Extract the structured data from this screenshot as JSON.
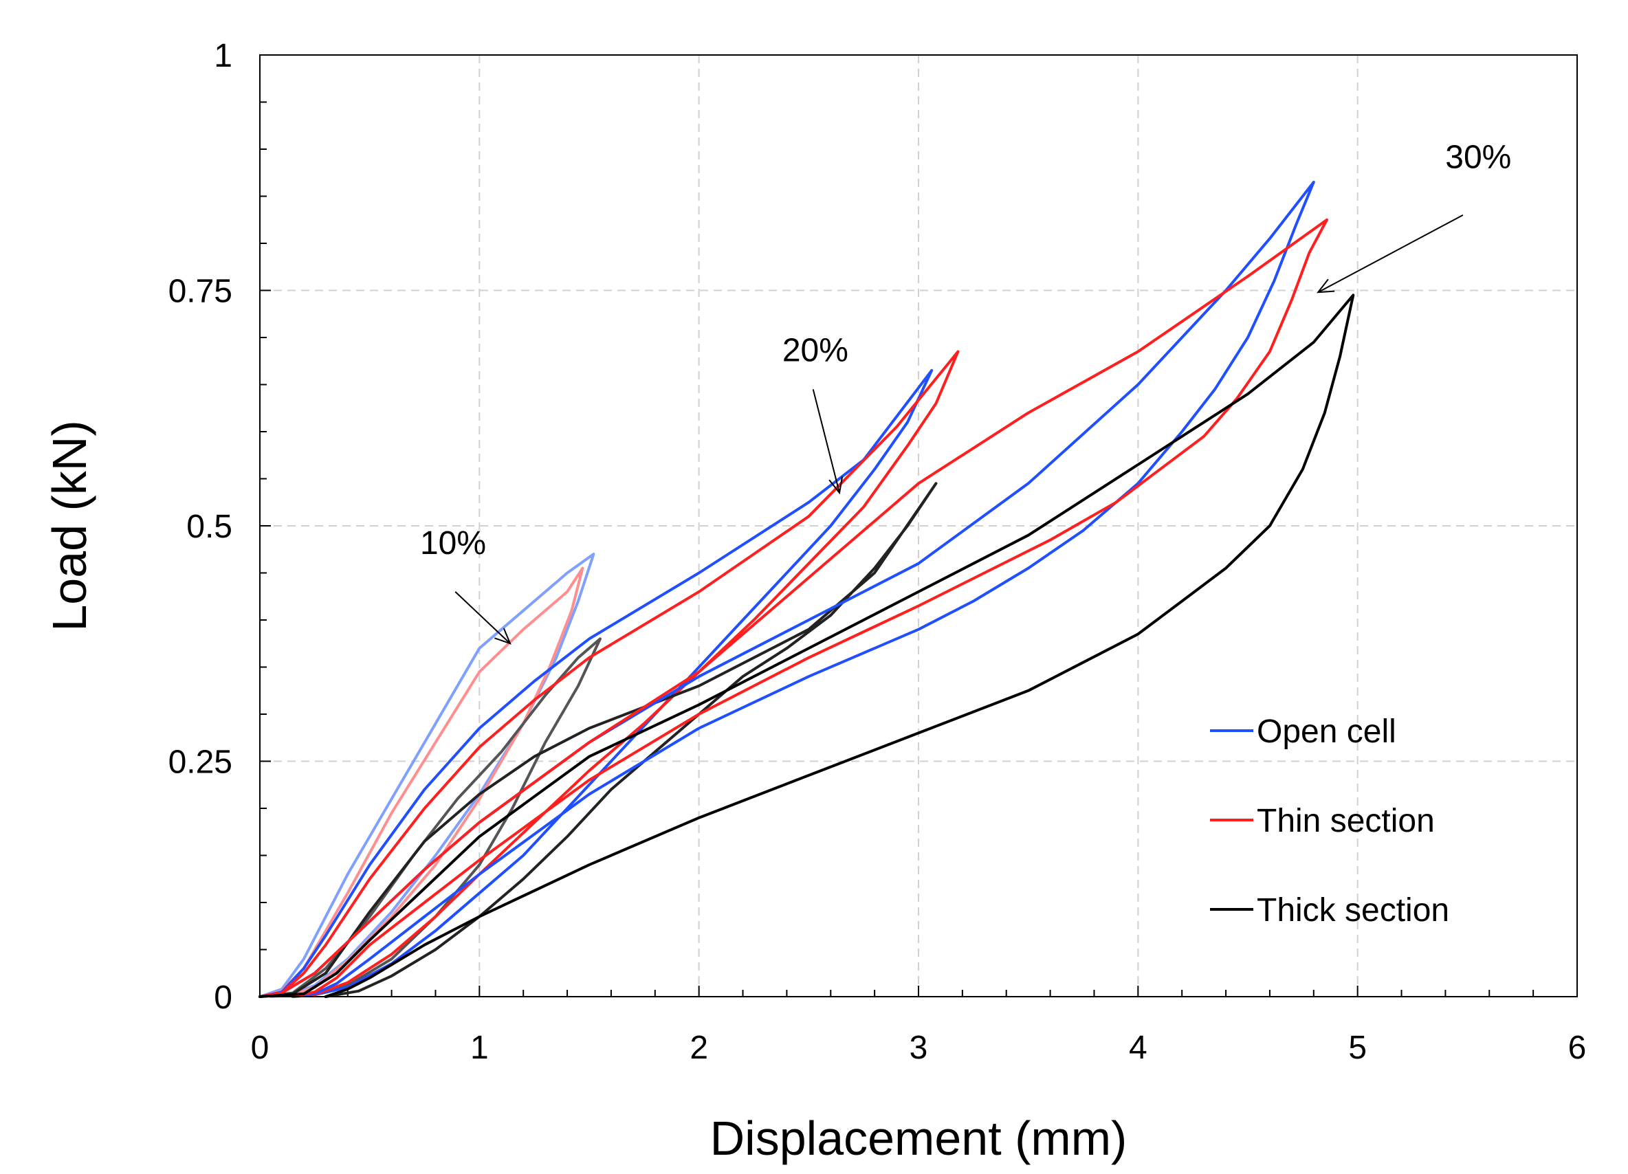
{
  "chart_data": {
    "type": "line",
    "title": "",
    "xlabel": "Displacement (mm)",
    "ylabel": "Load (kN)",
    "xlim": [
      0,
      6
    ],
    "ylim": [
      0,
      1
    ],
    "xticks": [
      0,
      1,
      2,
      3,
      4,
      5,
      6
    ],
    "xtick_labels": [
      "0",
      "1",
      "2",
      "3",
      "4",
      "5",
      "6"
    ],
    "yticks": [
      0,
      0.25,
      0.5,
      0.75,
      1
    ],
    "ytick_labels": [
      "0",
      "0.25",
      "0.5",
      "0.75",
      "1"
    ],
    "grid": true,
    "legend_position": "bottom-right",
    "colors": {
      "open_cell": "#1f4fff",
      "thin_section": "#ff1f1f",
      "thick_section": "#000000",
      "open_cell_10": "#7fa0ff",
      "thin_section_10": "#ff8f8f",
      "thick_section_10": "#555555"
    },
    "legend": [
      {
        "name": "Open cell",
        "color": "#1f4fff"
      },
      {
        "name": "Thin section",
        "color": "#ff1f1f"
      },
      {
        "name": "Thick section",
        "color": "#000000"
      }
    ],
    "annotations": [
      {
        "text": "10%",
        "label_at": [
          0.88,
          0.47
        ],
        "arrow_from": [
          0.89,
          0.43
        ],
        "arrow_to": [
          1.14,
          0.375
        ]
      },
      {
        "text": "20%",
        "label_at": [
          2.53,
          0.675
        ],
        "arrow_from": [
          2.52,
          0.645
        ],
        "arrow_to": [
          2.64,
          0.535
        ]
      },
      {
        "text": "30%",
        "label_at": [
          5.55,
          0.88
        ],
        "arrow_from": [
          5.48,
          0.83
        ],
        "arrow_to": [
          4.82,
          0.748
        ]
      }
    ],
    "series": [
      {
        "name": "Open cell 10%",
        "legend": "Open cell",
        "cycle": "10%",
        "color": "#7fa0ff",
        "loading": [
          [
            0,
            0
          ],
          [
            0.1,
            0.008
          ],
          [
            0.2,
            0.04
          ],
          [
            0.3,
            0.085
          ],
          [
            0.4,
            0.13
          ],
          [
            0.6,
            0.21
          ],
          [
            0.8,
            0.29
          ],
          [
            1.0,
            0.37
          ],
          [
            1.2,
            0.41
          ],
          [
            1.4,
            0.45
          ],
          [
            1.52,
            0.47
          ]
        ],
        "unloading": [
          [
            1.52,
            0.47
          ],
          [
            1.45,
            0.42
          ],
          [
            1.35,
            0.36
          ],
          [
            1.2,
            0.29
          ],
          [
            1.0,
            0.215
          ],
          [
            0.8,
            0.15
          ],
          [
            0.6,
            0.09
          ],
          [
            0.4,
            0.04
          ],
          [
            0.25,
            0.012
          ],
          [
            0.15,
            0.003
          ],
          [
            0.05,
            0
          ]
        ]
      },
      {
        "name": "Thin section 10%",
        "legend": "Thin section",
        "cycle": "10%",
        "color": "#ff8f8f",
        "loading": [
          [
            0,
            0
          ],
          [
            0.1,
            0.006
          ],
          [
            0.2,
            0.03
          ],
          [
            0.3,
            0.07
          ],
          [
            0.4,
            0.11
          ],
          [
            0.6,
            0.195
          ],
          [
            0.8,
            0.27
          ],
          [
            1.0,
            0.345
          ],
          [
            1.2,
            0.39
          ],
          [
            1.4,
            0.43
          ],
          [
            1.47,
            0.455
          ]
        ],
        "unloading": [
          [
            1.47,
            0.455
          ],
          [
            1.42,
            0.41
          ],
          [
            1.32,
            0.35
          ],
          [
            1.2,
            0.29
          ],
          [
            1.0,
            0.21
          ],
          [
            0.8,
            0.14
          ],
          [
            0.6,
            0.085
          ],
          [
            0.4,
            0.038
          ],
          [
            0.25,
            0.01
          ],
          [
            0.15,
            0.002
          ],
          [
            0.05,
            0
          ]
        ]
      },
      {
        "name": "Thick section 10%",
        "legend": "Thick section",
        "cycle": "10%",
        "color": "#555555",
        "loading": [
          [
            0,
            0
          ],
          [
            0.15,
            0.004
          ],
          [
            0.3,
            0.03
          ],
          [
            0.5,
            0.085
          ],
          [
            0.7,
            0.15
          ],
          [
            0.9,
            0.21
          ],
          [
            1.1,
            0.26
          ],
          [
            1.3,
            0.32
          ],
          [
            1.45,
            0.36
          ],
          [
            1.55,
            0.38
          ]
        ],
        "unloading": [
          [
            1.55,
            0.38
          ],
          [
            1.45,
            0.33
          ],
          [
            1.3,
            0.27
          ],
          [
            1.15,
            0.2
          ],
          [
            1.0,
            0.14
          ],
          [
            0.8,
            0.085
          ],
          [
            0.6,
            0.04
          ],
          [
            0.4,
            0.012
          ],
          [
            0.25,
            0.002
          ],
          [
            0.15,
            0
          ]
        ]
      },
      {
        "name": "Open cell 20%",
        "legend": "Open cell",
        "cycle": "20%",
        "color": "#1f4fff",
        "loading": [
          [
            0,
            0
          ],
          [
            0.1,
            0.005
          ],
          [
            0.2,
            0.03
          ],
          [
            0.3,
            0.065
          ],
          [
            0.5,
            0.14
          ],
          [
            0.75,
            0.22
          ],
          [
            1.0,
            0.285
          ],
          [
            1.25,
            0.335
          ],
          [
            1.5,
            0.38
          ],
          [
            2.0,
            0.45
          ],
          [
            2.5,
            0.525
          ],
          [
            2.75,
            0.57
          ],
          [
            3.06,
            0.665
          ]
        ],
        "unloading": [
          [
            3.06,
            0.665
          ],
          [
            2.95,
            0.61
          ],
          [
            2.8,
            0.56
          ],
          [
            2.6,
            0.5
          ],
          [
            2.4,
            0.45
          ],
          [
            2.2,
            0.4
          ],
          [
            2.0,
            0.35
          ],
          [
            1.8,
            0.3
          ],
          [
            1.6,
            0.25
          ],
          [
            1.4,
            0.2
          ],
          [
            1.2,
            0.15
          ],
          [
            1.0,
            0.11
          ],
          [
            0.8,
            0.07
          ],
          [
            0.6,
            0.035
          ],
          [
            0.4,
            0.01
          ],
          [
            0.25,
            0.002
          ],
          [
            0.15,
            0
          ]
        ]
      },
      {
        "name": "Thin section 20%",
        "legend": "Thin section",
        "cycle": "20%",
        "color": "#ff1f1f",
        "loading": [
          [
            0,
            0
          ],
          [
            0.1,
            0.004
          ],
          [
            0.2,
            0.025
          ],
          [
            0.3,
            0.055
          ],
          [
            0.5,
            0.125
          ],
          [
            0.75,
            0.2
          ],
          [
            1.0,
            0.265
          ],
          [
            1.25,
            0.315
          ],
          [
            1.5,
            0.36
          ],
          [
            2.0,
            0.43
          ],
          [
            2.5,
            0.51
          ],
          [
            2.9,
            0.605
          ],
          [
            3.18,
            0.685
          ]
        ],
        "unloading": [
          [
            3.18,
            0.685
          ],
          [
            3.08,
            0.63
          ],
          [
            2.95,
            0.585
          ],
          [
            2.75,
            0.52
          ],
          [
            2.5,
            0.46
          ],
          [
            2.25,
            0.4
          ],
          [
            2.0,
            0.345
          ],
          [
            1.75,
            0.29
          ],
          [
            1.5,
            0.24
          ],
          [
            1.25,
            0.185
          ],
          [
            1.0,
            0.13
          ],
          [
            0.8,
            0.085
          ],
          [
            0.6,
            0.045
          ],
          [
            0.4,
            0.015
          ],
          [
            0.25,
            0.002
          ],
          [
            0.15,
            0
          ]
        ]
      },
      {
        "name": "Thick section 20%",
        "legend": "Thick section",
        "cycle": "20%",
        "color": "#222222",
        "loading": [
          [
            0,
            0
          ],
          [
            0.15,
            0.003
          ],
          [
            0.3,
            0.025
          ],
          [
            0.5,
            0.09
          ],
          [
            0.75,
            0.165
          ],
          [
            1.0,
            0.215
          ],
          [
            1.25,
            0.255
          ],
          [
            1.5,
            0.285
          ],
          [
            2.0,
            0.33
          ],
          [
            2.5,
            0.39
          ],
          [
            2.8,
            0.45
          ],
          [
            3.08,
            0.545
          ]
        ],
        "unloading": [
          [
            3.08,
            0.545
          ],
          [
            2.95,
            0.5
          ],
          [
            2.8,
            0.455
          ],
          [
            2.6,
            0.405
          ],
          [
            2.4,
            0.37
          ],
          [
            2.2,
            0.34
          ],
          [
            2.0,
            0.3
          ],
          [
            1.8,
            0.26
          ],
          [
            1.6,
            0.22
          ],
          [
            1.4,
            0.17
          ],
          [
            1.2,
            0.125
          ],
          [
            1.0,
            0.085
          ],
          [
            0.8,
            0.05
          ],
          [
            0.6,
            0.022
          ],
          [
            0.45,
            0.006
          ],
          [
            0.3,
            0
          ]
        ]
      },
      {
        "name": "Open cell 30%",
        "legend": "Open cell",
        "cycle": "30%",
        "color": "#1f4fff",
        "loading": [
          [
            0,
            0
          ],
          [
            0.1,
            0.004
          ],
          [
            0.25,
            0.025
          ],
          [
            0.5,
            0.08
          ],
          [
            0.75,
            0.135
          ],
          [
            1.0,
            0.185
          ],
          [
            1.5,
            0.27
          ],
          [
            2.0,
            0.34
          ],
          [
            2.5,
            0.4
          ],
          [
            3.0,
            0.46
          ],
          [
            3.5,
            0.545
          ],
          [
            4.0,
            0.65
          ],
          [
            4.4,
            0.75
          ],
          [
            4.6,
            0.805
          ],
          [
            4.8,
            0.865
          ]
        ],
        "unloading": [
          [
            4.8,
            0.865
          ],
          [
            4.72,
            0.82
          ],
          [
            4.62,
            0.76
          ],
          [
            4.5,
            0.7
          ],
          [
            4.35,
            0.645
          ],
          [
            4.2,
            0.6
          ],
          [
            4.0,
            0.545
          ],
          [
            3.75,
            0.495
          ],
          [
            3.5,
            0.455
          ],
          [
            3.25,
            0.42
          ],
          [
            3.0,
            0.39
          ],
          [
            2.5,
            0.34
          ],
          [
            2.0,
            0.285
          ],
          [
            1.5,
            0.215
          ],
          [
            1.0,
            0.13
          ],
          [
            0.75,
            0.085
          ],
          [
            0.5,
            0.04
          ],
          [
            0.35,
            0.014
          ],
          [
            0.25,
            0.003
          ],
          [
            0.15,
            0
          ]
        ]
      },
      {
        "name": "Thin section 30%",
        "legend": "Thin section",
        "cycle": "30%",
        "color": "#ff1f1f",
        "loading": [
          [
            0,
            0
          ],
          [
            0.1,
            0.004
          ],
          [
            0.25,
            0.025
          ],
          [
            0.5,
            0.08
          ],
          [
            0.75,
            0.135
          ],
          [
            1.0,
            0.185
          ],
          [
            1.5,
            0.27
          ],
          [
            2.0,
            0.345
          ],
          [
            2.5,
            0.445
          ],
          [
            3.0,
            0.545
          ],
          [
            3.5,
            0.62
          ],
          [
            4.0,
            0.685
          ],
          [
            4.5,
            0.765
          ],
          [
            4.86,
            0.825
          ]
        ],
        "unloading": [
          [
            4.86,
            0.825
          ],
          [
            4.78,
            0.79
          ],
          [
            4.7,
            0.74
          ],
          [
            4.6,
            0.685
          ],
          [
            4.45,
            0.635
          ],
          [
            4.3,
            0.595
          ],
          [
            4.1,
            0.56
          ],
          [
            3.9,
            0.525
          ],
          [
            3.6,
            0.485
          ],
          [
            3.3,
            0.45
          ],
          [
            3.0,
            0.415
          ],
          [
            2.5,
            0.36
          ],
          [
            2.0,
            0.3
          ],
          [
            1.5,
            0.23
          ],
          [
            1.0,
            0.145
          ],
          [
            0.75,
            0.1
          ],
          [
            0.5,
            0.055
          ],
          [
            0.35,
            0.02
          ],
          [
            0.25,
            0.005
          ],
          [
            0.15,
            0
          ]
        ]
      },
      {
        "name": "Thick section 30%",
        "legend": "Thick section",
        "cycle": "30%",
        "color": "#000000",
        "loading": [
          [
            0,
            0
          ],
          [
            0.2,
            0.003
          ],
          [
            0.35,
            0.025
          ],
          [
            0.5,
            0.06
          ],
          [
            0.75,
            0.115
          ],
          [
            1.0,
            0.17
          ],
          [
            1.5,
            0.255
          ],
          [
            2.0,
            0.31
          ],
          [
            2.5,
            0.37
          ],
          [
            3.0,
            0.43
          ],
          [
            3.5,
            0.49
          ],
          [
            4.0,
            0.565
          ],
          [
            4.5,
            0.64
          ],
          [
            4.8,
            0.695
          ],
          [
            4.98,
            0.745
          ]
        ],
        "unloading": [
          [
            4.98,
            0.745
          ],
          [
            4.92,
            0.68
          ],
          [
            4.85,
            0.62
          ],
          [
            4.75,
            0.56
          ],
          [
            4.6,
            0.5
          ],
          [
            4.4,
            0.455
          ],
          [
            4.2,
            0.42
          ],
          [
            4.0,
            0.385
          ],
          [
            3.75,
            0.355
          ],
          [
            3.5,
            0.325
          ],
          [
            3.0,
            0.28
          ],
          [
            2.5,
            0.235
          ],
          [
            2.0,
            0.19
          ],
          [
            1.5,
            0.14
          ],
          [
            1.0,
            0.085
          ],
          [
            0.75,
            0.055
          ],
          [
            0.5,
            0.02
          ],
          [
            0.4,
            0.008
          ],
          [
            0.3,
            0
          ]
        ]
      }
    ]
  }
}
